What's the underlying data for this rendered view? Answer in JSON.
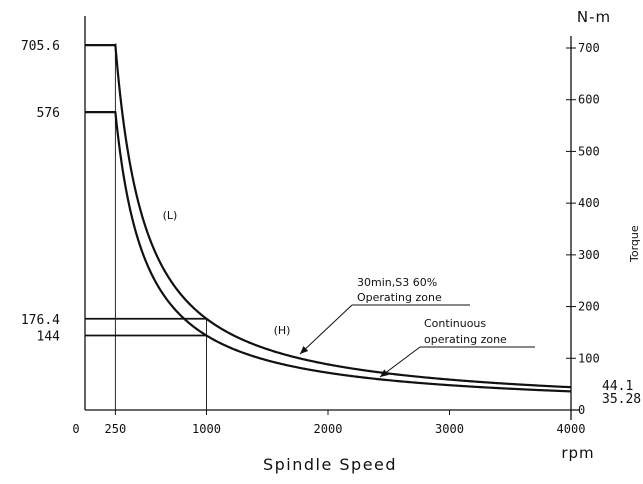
{
  "chart_data": {
    "type": "line",
    "title": "",
    "xlabel": "Spindle Speed",
    "xunit": "rpm",
    "ylabel": "Torque",
    "yunit": "N-m",
    "xlim": [
      0,
      4000
    ],
    "ylim": [
      0,
      700
    ],
    "x_ticks": [
      {
        "value": 250,
        "label": "250"
      },
      {
        "value": 1000,
        "label": "1000"
      },
      {
        "value": 2000,
        "label": "2000"
      },
      {
        "value": 3000,
        "label": "3000"
      },
      {
        "value": 4000,
        "label": "4000"
      }
    ],
    "x_origin_label": "0",
    "y_ticks": [
      {
        "value": 0,
        "label": "0"
      },
      {
        "value": 100,
        "label": "100"
      },
      {
        "value": 200,
        "label": "200"
      },
      {
        "value": 300,
        "label": "300"
      },
      {
        "value": 400,
        "label": "400"
      },
      {
        "value": 500,
        "label": "500"
      },
      {
        "value": 600,
        "label": "600"
      },
      {
        "value": 700,
        "label": "700"
      }
    ],
    "left_labels": [
      {
        "value": 705.6,
        "label": "705.6"
      },
      {
        "value": 576,
        "label": "576"
      },
      {
        "value": 176.4,
        "label": "176.4"
      },
      {
        "value": 144,
        "label": "144"
      }
    ],
    "right_labels": [
      {
        "value": 44.1,
        "label": "44.1"
      },
      {
        "value": 35.28,
        "label": "35.28"
      }
    ],
    "series": [
      {
        "name": "30min,S3 60% Operating zone",
        "points": [
          [
            0,
            705.6
          ],
          [
            250,
            705.6
          ],
          [
            1000,
            176.4
          ],
          [
            4000,
            44.1
          ]
        ]
      },
      {
        "name": "Continuous operating zone",
        "points": [
          [
            0,
            576
          ],
          [
            250,
            576
          ],
          [
            1000,
            144
          ],
          [
            4000,
            35.28
          ]
        ]
      }
    ],
    "guide_lines_x": [
      250,
      1000
    ],
    "annotations": [
      {
        "id": "L",
        "text": "(L)"
      },
      {
        "id": "H",
        "text": "(H)"
      },
      {
        "id": "s3_line1",
        "text": "30min,S3  60%"
      },
      {
        "id": "s3_line2",
        "text": "Operating  zone"
      },
      {
        "id": "cont_line1",
        "text": "Continuous"
      },
      {
        "id": "cont_line2",
        "text": "operating  zone"
      }
    ]
  }
}
